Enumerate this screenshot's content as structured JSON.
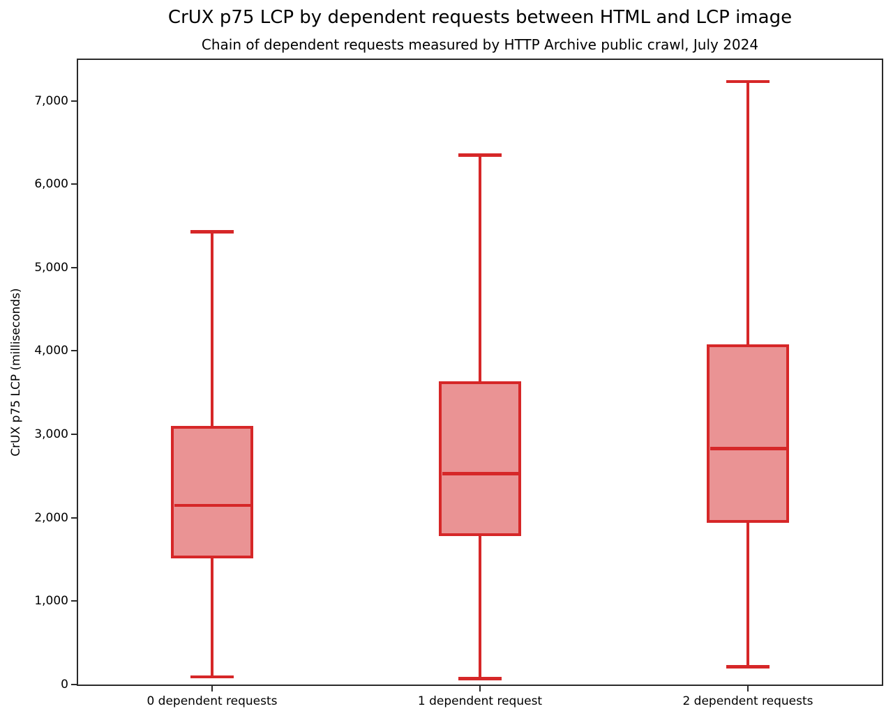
{
  "chart_data": {
    "type": "boxplot",
    "title": "CrUX p75 LCP by dependent requests between HTML and LCP image",
    "subtitle": "Chain of dependent requests measured by HTTP Archive public crawl, July 2024",
    "ylabel": "CrUX p75 LCP (milliseconds)",
    "xlabel": "",
    "categories": [
      "0 dependent requests",
      "1 dependent request",
      "2 dependent requests"
    ],
    "yticks": [
      0,
      1000,
      2000,
      3000,
      4000,
      5000,
      6000,
      7000
    ],
    "ylim": [
      0,
      7490
    ],
    "grid": false,
    "legend": null,
    "boxes": [
      {
        "category": "0 dependent requests",
        "whisker_low": 90,
        "q1": 1530,
        "median": 2150,
        "q3": 3080,
        "whisker_high": 5430
      },
      {
        "category": "1 dependent request",
        "whisker_low": 70,
        "q1": 1800,
        "median": 2530,
        "q3": 3620,
        "whisker_high": 6350
      },
      {
        "category": "2 dependent requests",
        "whisker_low": 215,
        "q1": 1960,
        "median": 2830,
        "q3": 4060,
        "whisker_high": 7230
      }
    ],
    "colors": {
      "box_stroke": "#d62728",
      "box_fill": "#ea9394",
      "axis": "#2a2a2a",
      "text": "#000000"
    }
  }
}
